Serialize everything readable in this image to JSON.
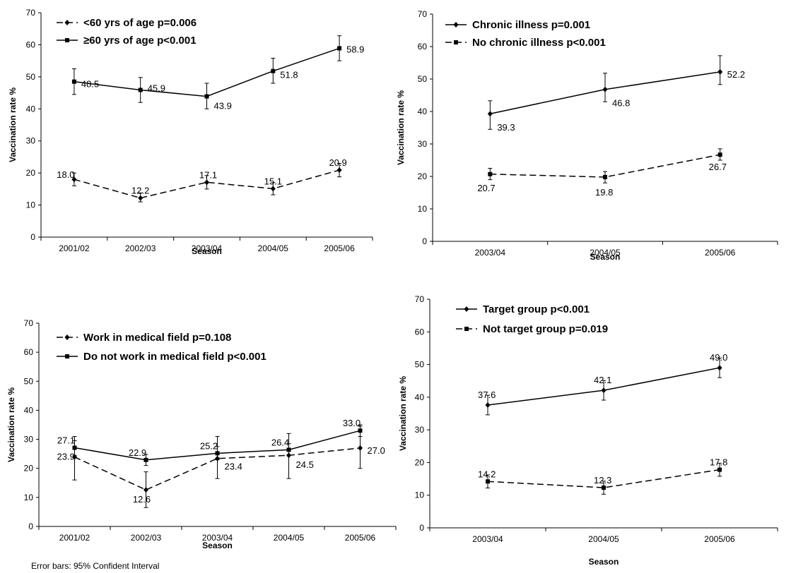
{
  "footnote": "Error bars: 95% Confident Interval",
  "chart_data": [
    {
      "type": "line",
      "categories": [
        "2001/02",
        "2002/03",
        "2003/04",
        "2004/05",
        "2005/06"
      ],
      "xlabel": "Season",
      "ylabel": "Vaccination rate %",
      "ylim": [
        0,
        70
      ],
      "yticks": [
        0,
        10,
        20,
        30,
        40,
        50,
        60,
        70
      ],
      "legend_position": "top-left",
      "series": [
        {
          "name": "<60 yrs of age p=0.006",
          "marker": "diamond",
          "dashed": true,
          "values": [
            18.0,
            12.2,
            17.1,
            15.1,
            20.9
          ],
          "labels": [
            "18.0",
            "12.2",
            "17.1",
            "15.1",
            "20.9"
          ],
          "err_low": [
            16.0,
            11.0,
            15.0,
            13.2,
            18.8
          ],
          "err_high": [
            20.0,
            13.8,
            19.2,
            17.0,
            23.0
          ]
        },
        {
          "name": "≥60 yrs of age p<0.001",
          "marker": "square",
          "dashed": false,
          "values": [
            48.5,
            45.9,
            43.9,
            51.8,
            58.9
          ],
          "labels": [
            "48.5",
            "45.9",
            "43.9",
            "51.8",
            "58.9"
          ],
          "err_low": [
            44.5,
            42.0,
            40.0,
            48.0,
            55.0
          ],
          "err_high": [
            52.5,
            49.8,
            48.0,
            55.8,
            62.8
          ]
        }
      ]
    },
    {
      "type": "line",
      "categories": [
        "2003/04",
        "2004/05",
        "2005/06"
      ],
      "xlabel": "Season",
      "ylabel": "Vaccination rate %",
      "ylim": [
        0,
        70
      ],
      "yticks": [
        0,
        10,
        20,
        30,
        40,
        50,
        60,
        70
      ],
      "legend_position": "top-left",
      "series": [
        {
          "name": "Chronic illness p=0.001",
          "marker": "diamond",
          "dashed": false,
          "values": [
            39.3,
            46.8,
            52.2
          ],
          "labels": [
            "39.3",
            "46.8",
            "52.2"
          ],
          "err_low": [
            34.5,
            43.0,
            48.3
          ],
          "err_high": [
            43.3,
            51.8,
            57.2
          ]
        },
        {
          "name": "No chronic illness p<0.001",
          "marker": "square",
          "dashed": true,
          "values": [
            20.7,
            19.8,
            26.7
          ],
          "labels": [
            "20.7",
            "19.8",
            "26.7"
          ],
          "err_low": [
            19.0,
            18.0,
            25.0
          ],
          "err_high": [
            22.5,
            21.5,
            28.5
          ]
        }
      ]
    },
    {
      "type": "line",
      "categories": [
        "2001/02",
        "2002/03",
        "2003/04",
        "2004/05",
        "2005/06"
      ],
      "xlabel": "Season",
      "ylabel": "Vaccination rate %",
      "ylim": [
        0,
        70
      ],
      "yticks": [
        0,
        10,
        20,
        30,
        40,
        50,
        60,
        70
      ],
      "legend_position": "top-left",
      "series": [
        {
          "name": "Work in medical field p=0.108",
          "marker": "diamond",
          "dashed": true,
          "values": [
            23.9,
            12.6,
            23.4,
            24.5,
            27.0
          ],
          "labels": [
            "23.9",
            "12.6",
            "23.4",
            "24.5",
            "27.0"
          ],
          "err_low": [
            16.0,
            6.5,
            16.5,
            16.5,
            20.0
          ],
          "err_high": [
            31.0,
            18.8,
            31.0,
            32.0,
            34.5
          ]
        },
        {
          "name": "Do not work in medical field p<0.001",
          "marker": "square",
          "dashed": false,
          "values": [
            27.1,
            22.9,
            25.2,
            26.4,
            33.0
          ],
          "labels": [
            "27.1",
            "22.9",
            "25.2",
            "26.4",
            "33.0"
          ],
          "err_low": [
            24.5,
            21.0,
            23.0,
            24.5,
            31.0
          ],
          "err_high": [
            29.5,
            24.8,
            27.5,
            28.5,
            35.0
          ]
        }
      ]
    },
    {
      "type": "line",
      "categories": [
        "2003/04",
        "2004/05",
        "2005/06"
      ],
      "xlabel": "Season",
      "ylabel": "Vaccination rate %",
      "ylim": [
        0,
        70
      ],
      "yticks": [
        0,
        10,
        20,
        30,
        40,
        50,
        60,
        70
      ],
      "legend_position": "top-left",
      "series": [
        {
          "name": "Target group p<0.001",
          "marker": "diamond",
          "dashed": false,
          "values": [
            37.6,
            42.1,
            49.0
          ],
          "labels": [
            "37.6",
            "42.1",
            "49.0"
          ],
          "err_low": [
            34.6,
            39.1,
            46.0
          ],
          "err_high": [
            40.6,
            45.1,
            52.0
          ]
        },
        {
          "name": "Not target group p=0.019",
          "marker": "square",
          "dashed": true,
          "values": [
            14.2,
            12.3,
            17.8
          ],
          "labels": [
            "14.2",
            "12.3",
            "17.8"
          ],
          "err_low": [
            12.2,
            10.3,
            15.8
          ],
          "err_high": [
            16.2,
            14.3,
            19.8
          ]
        }
      ]
    }
  ]
}
